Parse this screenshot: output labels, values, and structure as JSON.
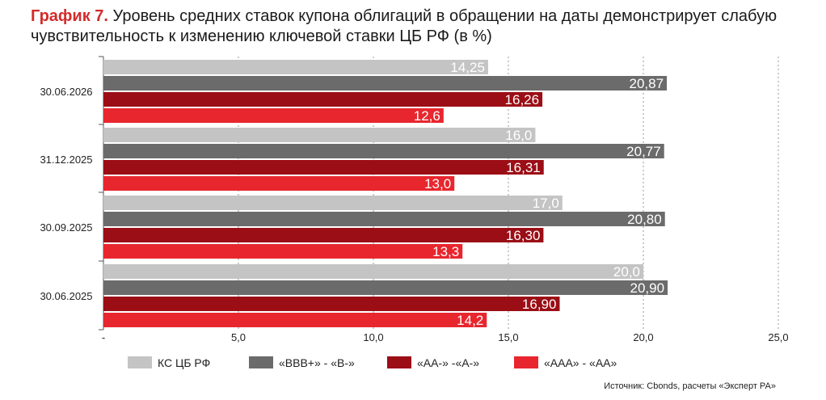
{
  "title": {
    "lead": "График 7.",
    "text": " Уровень средних ставок купона облигаций в обращении на даты демонстрирует слабую чувствительность к изменению ключевой ставки ЦБ РФ (в %)"
  },
  "source": "Источник: Cbonds, расчеты «Эксперт РА»",
  "chart_data": {
    "type": "bar",
    "orientation": "horizontal",
    "categories": [
      "30.06.2026",
      "31.12.2025",
      "30.09.2025",
      "30.06.2025"
    ],
    "series": [
      {
        "name": "КС ЦБ РФ",
        "color": "#c4c4c4",
        "values": [
          14.25,
          16.0,
          17.0,
          20.0
        ],
        "labels": [
          "14,25",
          "16,0",
          "17,0",
          "20,0"
        ]
      },
      {
        "name": "«BBB+» - «B-»",
        "color": "#6b6b6b",
        "values": [
          20.87,
          20.77,
          20.8,
          20.9
        ],
        "labels": [
          "20,87",
          "20,77",
          "20,80",
          "20,90"
        ]
      },
      {
        "name": "«AA-» -«A-»",
        "color": "#9b0e16",
        "values": [
          16.26,
          16.31,
          16.3,
          16.9
        ],
        "labels": [
          "16,26",
          "16,31",
          "16,30",
          "16,90"
        ]
      },
      {
        "name": "«AAA» - «AA»",
        "color": "#e8262e",
        "values": [
          12.6,
          13.0,
          13.3,
          14.2
        ],
        "labels": [
          "12,6",
          "13,0",
          "13,3",
          "14,2"
        ]
      }
    ],
    "xlim": [
      0,
      25
    ],
    "xticks": [
      0,
      5,
      10,
      15,
      20,
      25
    ],
    "xtick_labels": [
      "-",
      "5,0",
      "10,0",
      "15,0",
      "20,0",
      "25,0"
    ],
    "grid": "vertical-dashed",
    "legend": "bottom"
  }
}
